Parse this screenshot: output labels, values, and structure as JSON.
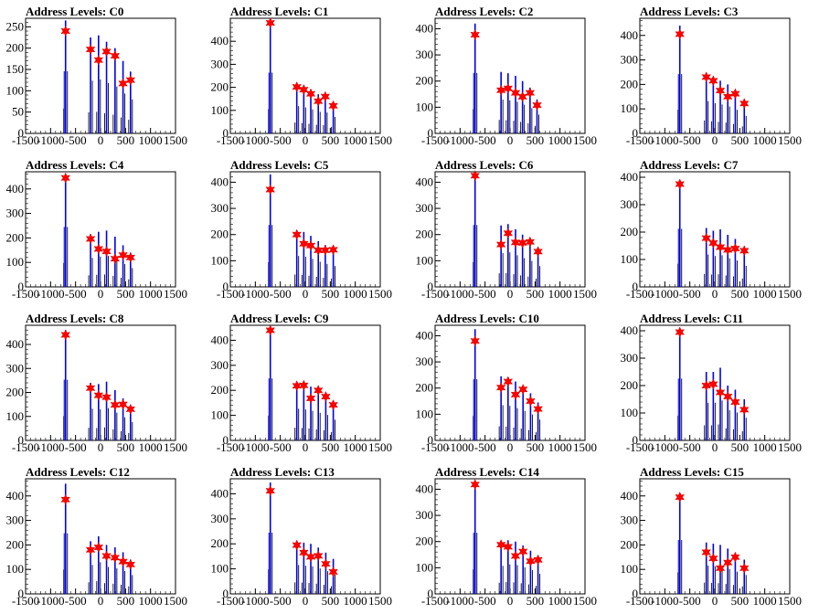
{
  "chart_data": [
    {
      "type": "bar",
      "title": "Address Levels: C0",
      "xlim": [
        -1500,
        1500
      ],
      "ylim": [
        0,
        270
      ],
      "x_ticks": [
        -1500,
        -1000,
        -500,
        0,
        500,
        1000,
        1500
      ],
      "y_ticks": [
        0,
        50,
        100,
        150,
        200,
        250
      ],
      "peaks_x": [
        -700,
        -200,
        -40,
        120,
        290,
        450,
        600
      ],
      "peak_heights": [
        265,
        225,
        230,
        215,
        200,
        170,
        145
      ],
      "markers_y": [
        240,
        197,
        172,
        192,
        182,
        117,
        125
      ]
    },
    {
      "type": "bar",
      "title": "Address Levels: C1",
      "xlim": [
        -1500,
        1500
      ],
      "ylim": [
        0,
        500
      ],
      "x_ticks": [
        -1500,
        -1000,
        -500,
        0,
        500,
        1000,
        1500
      ],
      "y_ticks": [
        0,
        100,
        200,
        300,
        400
      ],
      "peaks_x": [
        -700,
        -170,
        -30,
        110,
        260,
        400,
        560
      ],
      "peak_heights": [
        480,
        215,
        205,
        190,
        170,
        165,
        130
      ],
      "markers_y": [
        480,
        202,
        190,
        172,
        140,
        160,
        120
      ]
    },
    {
      "type": "bar",
      "title": "Address Levels: C2",
      "xlim": [
        -1500,
        1500
      ],
      "ylim": [
        0,
        440
      ],
      "x_ticks": [
        -1500,
        -1000,
        -500,
        0,
        500,
        1000,
        1500
      ],
      "y_ticks": [
        0,
        100,
        200,
        300,
        400
      ],
      "peaks_x": [
        -700,
        -180,
        -40,
        110,
        250,
        400,
        540
      ],
      "peak_heights": [
        420,
        235,
        230,
        220,
        200,
        175,
        130
      ],
      "markers_y": [
        377,
        165,
        172,
        155,
        140,
        155,
        108
      ]
    },
    {
      "type": "bar",
      "title": "Address Levels: C3",
      "xlim": [
        -1500,
        1500
      ],
      "ylim": [
        0,
        470
      ],
      "x_ticks": [
        -1500,
        -1000,
        -500,
        0,
        500,
        1000,
        1500
      ],
      "y_ticks": [
        0,
        100,
        200,
        300,
        400
      ],
      "peaks_x": [
        -700,
        -170,
        -30,
        110,
        260,
        410,
        590
      ],
      "peak_heights": [
        440,
        240,
        225,
        215,
        200,
        175,
        130
      ],
      "markers_y": [
        405,
        230,
        215,
        175,
        150,
        162,
        122
      ]
    },
    {
      "type": "bar",
      "title": "Address Levels: C4",
      "xlim": [
        -1500,
        1500
      ],
      "ylim": [
        0,
        470
      ],
      "x_ticks": [
        -1500,
        -1000,
        -500,
        0,
        500,
        1000,
        1500
      ],
      "y_ticks": [
        0,
        100,
        200,
        300,
        400
      ],
      "peaks_x": [
        -700,
        -200,
        -40,
        120,
        290,
        450,
        600
      ],
      "peak_heights": [
        445,
        215,
        225,
        230,
        205,
        170,
        140
      ],
      "markers_y": [
        445,
        196,
        155,
        145,
        115,
        130,
        120
      ]
    },
    {
      "type": "bar",
      "title": "Address Levels: C5",
      "xlim": [
        -1500,
        1500
      ],
      "ylim": [
        0,
        440
      ],
      "x_ticks": [
        -1500,
        -1000,
        -500,
        0,
        500,
        1000,
        1500
      ],
      "y_ticks": [
        0,
        100,
        200,
        300,
        400
      ],
      "peaks_x": [
        -700,
        -170,
        -30,
        110,
        260,
        400,
        560
      ],
      "peak_heights": [
        430,
        215,
        210,
        195,
        175,
        160,
        145
      ],
      "markers_y": [
        372,
        200,
        165,
        158,
        140,
        140,
        142
      ]
    },
    {
      "type": "bar",
      "title": "Address Levels: C6",
      "xlim": [
        -1500,
        1500
      ],
      "ylim": [
        0,
        440
      ],
      "x_ticks": [
        -1500,
        -1000,
        -500,
        0,
        500,
        1000,
        1500
      ],
      "y_ticks": [
        0,
        100,
        200,
        300,
        400
      ],
      "peaks_x": [
        -700,
        -180,
        -40,
        110,
        250,
        400,
        560
      ],
      "peak_heights": [
        430,
        235,
        240,
        220,
        200,
        180,
        145
      ],
      "markers_y": [
        425,
        162,
        205,
        170,
        168,
        172,
        135
      ]
    },
    {
      "type": "bar",
      "title": "Address Levels: C7",
      "xlim": [
        -1500,
        1500
      ],
      "ylim": [
        0,
        420
      ],
      "x_ticks": [
        -1500,
        -1000,
        -500,
        0,
        500,
        1000,
        1500
      ],
      "y_ticks": [
        0,
        100,
        200,
        300,
        400
      ],
      "peaks_x": [
        -700,
        -170,
        -30,
        110,
        260,
        410,
        590
      ],
      "peak_heights": [
        385,
        215,
        205,
        210,
        190,
        175,
        140
      ],
      "markers_y": [
        375,
        178,
        160,
        145,
        135,
        140,
        132
      ]
    },
    {
      "type": "bar",
      "title": "Address Levels: C8",
      "xlim": [
        -1500,
        1500
      ],
      "ylim": [
        0,
        480
      ],
      "x_ticks": [
        -1500,
        -1000,
        -500,
        0,
        500,
        1000,
        1500
      ],
      "y_ticks": [
        0,
        100,
        200,
        300,
        400
      ],
      "peaks_x": [
        -700,
        -200,
        -40,
        120,
        290,
        450,
        600
      ],
      "peak_heights": [
        460,
        240,
        235,
        245,
        210,
        175,
        140
      ],
      "markers_y": [
        440,
        218,
        188,
        180,
        148,
        150,
        130
      ]
    },
    {
      "type": "bar",
      "title": "Address Levels: C9",
      "xlim": [
        -1500,
        1500
      ],
      "ylim": [
        0,
        460
      ],
      "x_ticks": [
        -1500,
        -1000,
        -500,
        0,
        500,
        1000,
        1500
      ],
      "y_ticks": [
        0,
        100,
        200,
        300,
        400
      ],
      "peaks_x": [
        -700,
        -170,
        -30,
        110,
        260,
        410,
        560
      ],
      "peak_heights": [
        450,
        230,
        225,
        215,
        200,
        185,
        150
      ],
      "markers_y": [
        440,
        218,
        220,
        168,
        200,
        175,
        142
      ]
    },
    {
      "type": "bar",
      "title": "Address Levels: C10",
      "xlim": [
        -1500,
        1500
      ],
      "ylim": [
        0,
        440
      ],
      "x_ticks": [
        -1500,
        -1000,
        -500,
        0,
        500,
        1000,
        1500
      ],
      "y_ticks": [
        0,
        100,
        200,
        300,
        400
      ],
      "peaks_x": [
        -700,
        -180,
        -40,
        110,
        260,
        410,
        560
      ],
      "peak_heights": [
        425,
        245,
        240,
        225,
        205,
        180,
        145
      ],
      "markers_y": [
        380,
        202,
        225,
        175,
        195,
        150,
        120
      ]
    },
    {
      "type": "bar",
      "title": "Address Levels: C11",
      "xlim": [
        -1500,
        1500
      ],
      "ylim": [
        0,
        420
      ],
      "x_ticks": [
        -1500,
        -1000,
        -500,
        0,
        500,
        1000,
        1500
      ],
      "y_ticks": [
        0,
        100,
        200,
        300,
        400
      ],
      "peaks_x": [
        -700,
        -170,
        -30,
        110,
        260,
        410,
        590
      ],
      "peak_heights": [
        410,
        250,
        250,
        265,
        200,
        185,
        150
      ],
      "markers_y": [
        395,
        200,
        205,
        175,
        160,
        140,
        112
      ]
    },
    {
      "type": "bar",
      "title": "Address Levels: C12",
      "xlim": [
        -1500,
        1500
      ],
      "ylim": [
        0,
        470
      ],
      "x_ticks": [
        -1500,
        -1000,
        -500,
        0,
        500,
        1000,
        1500
      ],
      "y_ticks": [
        0,
        100,
        200,
        300,
        400
      ],
      "peaks_x": [
        -700,
        -200,
        -40,
        120,
        290,
        450,
        600
      ],
      "peak_heights": [
        450,
        215,
        235,
        200,
        190,
        170,
        140
      ],
      "markers_y": [
        385,
        180,
        190,
        155,
        148,
        132,
        120
      ]
    },
    {
      "type": "bar",
      "title": "Address Levels: C13",
      "xlim": [
        -1500,
        1500
      ],
      "ylim": [
        0,
        460
      ],
      "x_ticks": [
        -1500,
        -1000,
        -500,
        0,
        500,
        1000,
        1500
      ],
      "y_ticks": [
        0,
        100,
        200,
        300,
        400
      ],
      "peaks_x": [
        -700,
        -170,
        -30,
        110,
        260,
        410,
        560
      ],
      "peak_heights": [
        445,
        210,
        205,
        200,
        185,
        165,
        140
      ],
      "markers_y": [
        412,
        195,
        165,
        148,
        152,
        120,
        88
      ]
    },
    {
      "type": "bar",
      "title": "Address Levels: C14",
      "xlim": [
        -1500,
        1500
      ],
      "ylim": [
        0,
        440
      ],
      "x_ticks": [
        -1500,
        -1000,
        -500,
        0,
        500,
        1000,
        1500
      ],
      "y_ticks": [
        0,
        100,
        200,
        300,
        400
      ],
      "peaks_x": [
        -700,
        -180,
        -40,
        110,
        260,
        410,
        560
      ],
      "peak_heights": [
        425,
        195,
        205,
        200,
        185,
        165,
        140
      ],
      "markers_y": [
        418,
        188,
        180,
        145,
        162,
        125,
        130
      ]
    },
    {
      "type": "bar",
      "title": "Address Levels: C15",
      "xlim": [
        -1500,
        1500
      ],
      "ylim": [
        0,
        470
      ],
      "x_ticks": [
        -1500,
        -1000,
        -500,
        0,
        500,
        1000,
        1500
      ],
      "y_ticks": [
        0,
        100,
        200,
        300,
        400
      ],
      "peaks_x": [
        -700,
        -170,
        -30,
        110,
        260,
        410,
        590
      ],
      "peak_heights": [
        400,
        210,
        205,
        200,
        185,
        165,
        140
      ],
      "markers_y": [
        395,
        170,
        145,
        105,
        128,
        150,
        105
      ]
    }
  ]
}
